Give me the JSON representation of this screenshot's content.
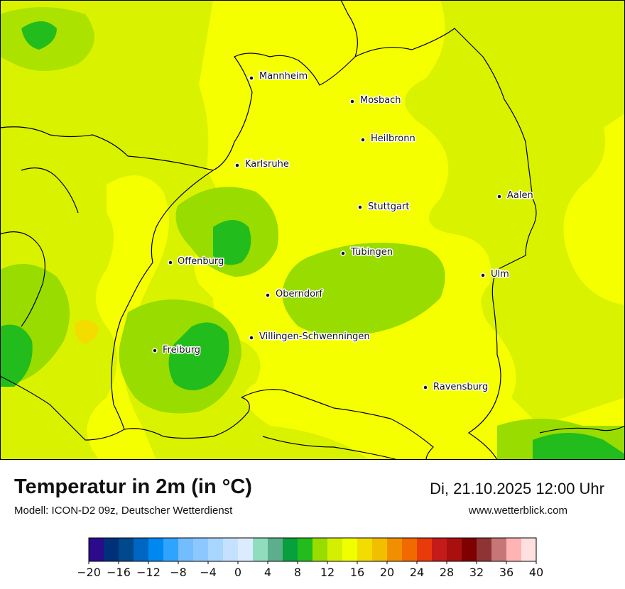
{
  "title": "Temperatur in 2m (in °C)",
  "model": "Modell: ICON-D2 09z, Deutscher Wetterdienst",
  "datetime": "Di, 21.10.2025 12:00 Uhr",
  "website": "www.wetterblick.com",
  "cities": [
    "Mannheim",
    "Mosbach",
    "Heilbronn",
    "Karlsruhe",
    "Aalen",
    "Stuttgart",
    "Tübingen",
    "Offenburg",
    "Ulm",
    "Oberndorf",
    "Villingen-Schwenningen",
    "Freiburg",
    "Ravensburg"
  ],
  "legend": {
    "ticks": [
      "−20",
      "−16",
      "−12",
      "−8",
      "−4",
      "0",
      "4",
      "8",
      "12",
      "16",
      "20",
      "24",
      "28",
      "32",
      "36",
      "40"
    ],
    "colors": [
      "#2c0a8c",
      "#00307a",
      "#00498c",
      "#0066c4",
      "#0088f0",
      "#2ea4ff",
      "#73bdff",
      "#8cc8ff",
      "#a8d6ff",
      "#c4e2ff",
      "#dcecff",
      "#8fdcbf",
      "#5caf8c",
      "#08a03c",
      "#22bd1c",
      "#98dc00",
      "#d4f000",
      "#f0ff00",
      "#f3dc00",
      "#f2be00",
      "#f09000",
      "#f06a00",
      "#e83a0a",
      "#c41a1a",
      "#a81010",
      "#800000",
      "#8e3434",
      "#c67676",
      "#ffb4b4",
      "#ffe0e0"
    ]
  }
}
